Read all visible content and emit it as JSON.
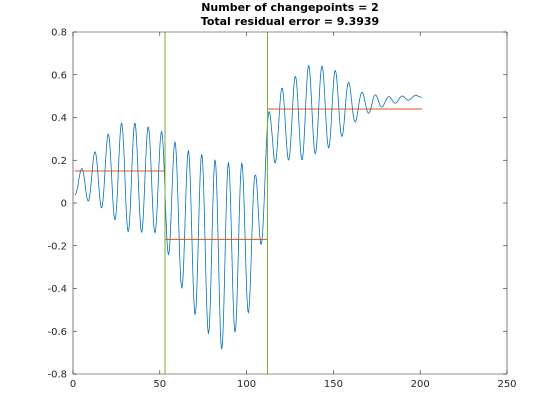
{
  "chart_data": {
    "type": "line",
    "title": [
      "Number of changepoints = 2",
      "Total residual error = 9.3939"
    ],
    "xlabel": "",
    "ylabel": "",
    "xlim": [
      0,
      250
    ],
    "ylim": [
      -0.8,
      0.8
    ],
    "x_ticks": [
      0,
      50,
      100,
      150,
      200,
      250
    ],
    "y_ticks": [
      -0.8,
      -0.6,
      -0.4,
      -0.2,
      0,
      0.2,
      0.4,
      0.6,
      0.8
    ],
    "grid": false,
    "legend": "none",
    "changepoints": [
      53,
      112
    ],
    "segment_means": [
      {
        "x_start": 1,
        "x_end": 53,
        "value": 0.15
      },
      {
        "x_start": 53,
        "x_end": 112,
        "value": -0.17
      },
      {
        "x_start": 112,
        "x_end": 201,
        "value": 0.44
      }
    ],
    "series": [
      {
        "color": "#0072bd",
        "signal": {
          "x_range": [
            1,
            201
          ],
          "period": 7.7,
          "baseline_keypoints": [
            [
              1,
              0.08
            ],
            [
              20,
              0.14
            ],
            [
              50,
              0.1
            ],
            [
              65,
              -0.1
            ],
            [
              85,
              -0.25
            ],
            [
              105,
              -0.15
            ],
            [
              115,
              0.35
            ],
            [
              140,
              0.44
            ],
            [
              165,
              0.46
            ],
            [
              201,
              0.5
            ]
          ],
          "amplitude_keypoints": [
            [
              1,
              0.04
            ],
            [
              15,
              0.14
            ],
            [
              30,
              0.26
            ],
            [
              50,
              0.24
            ],
            [
              70,
              0.38
            ],
            [
              85,
              0.44
            ],
            [
              100,
              0.36
            ],
            [
              110,
              0.2
            ],
            [
              118,
              0.16
            ],
            [
              135,
              0.22
            ],
            [
              150,
              0.18
            ],
            [
              165,
              0.06
            ],
            [
              180,
              0.02
            ],
            [
              201,
              0.005
            ]
          ]
        }
      }
    ],
    "colors": {
      "signal": "#0072bd",
      "segment_mean": "#d95319",
      "changepoint": "#77ac30"
    }
  }
}
